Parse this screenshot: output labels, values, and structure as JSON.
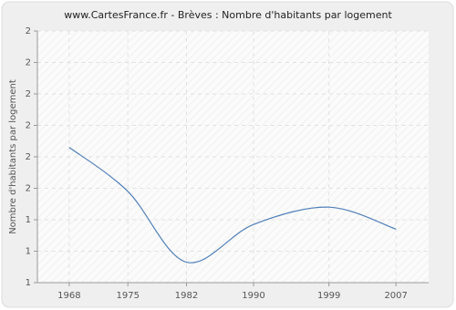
{
  "chart_data": {
    "type": "line",
    "title": "www.CartesFrance.fr - Brèves : Nombre d'habitants par logement",
    "y_label": "Nombre d'habitants par logement",
    "x": [
      1968,
      1975,
      1982,
      1990,
      1999,
      2007
    ],
    "series": [
      {
        "name": "Brèves",
        "color": "#4f7fb8",
        "values": [
          1.86,
          1.58,
          1.13,
          1.37,
          1.48,
          1.34
        ]
      }
    ],
    "xlim": [
      1964.2,
      2010.9
    ],
    "xticks": [
      1968,
      1975,
      1982,
      1990,
      1999,
      2007
    ],
    "ylim": [
      1.0,
      2.6
    ],
    "yticks": [
      {
        "value": 1.0,
        "label": "1"
      },
      {
        "value": 1.2,
        "label": "1"
      },
      {
        "value": 1.4,
        "label": "1"
      },
      {
        "value": 1.6,
        "label": "2"
      },
      {
        "value": 1.8,
        "label": "2"
      },
      {
        "value": 2.0,
        "label": "2"
      },
      {
        "value": 2.2,
        "label": "2"
      },
      {
        "value": 2.4,
        "label": "2"
      },
      {
        "value": 2.6,
        "label": "2"
      }
    ],
    "grid": true
  }
}
